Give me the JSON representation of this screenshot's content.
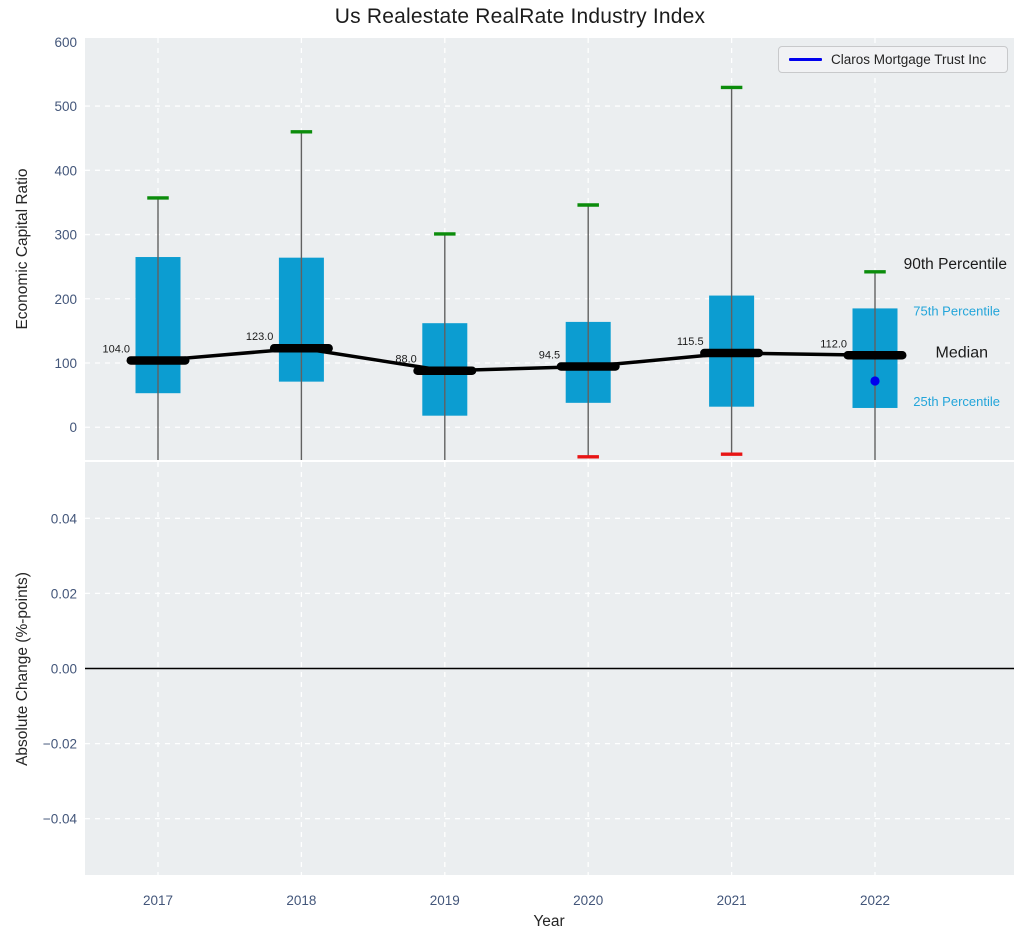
{
  "title": "Us Realestate RealRate Industry Index",
  "legend": {
    "label": "Claros Mortgage Trust Inc"
  },
  "colors": {
    "box_fill": "#0c9dd1",
    "median_line": "#000000",
    "whisker": "#616161",
    "percentile90_cap": "#0b8c0b",
    "percentile10_cap": "#e81414",
    "company_marker": "#0000ee",
    "annotation_blue": "#23a5da",
    "annotation_black": "#1a1a1a",
    "tick_label": "#43567a",
    "axis_label": "#262626",
    "plot_background": "#ebeef0",
    "gridline": "#ffffff",
    "zero_line": "#000000",
    "legend_background": "#f1f2f4",
    "legend_border": "#c8c9cb"
  },
  "chart_data": [
    {
      "type": "box",
      "panel": "top",
      "title": "Us Realestate RealRate Industry Index",
      "ylabel": "Economic Capital Ratio",
      "ylim": [
        -51,
        606
      ],
      "yticks": [
        {
          "value": 600,
          "label": "600"
        },
        {
          "value": 500,
          "label": "500"
        },
        {
          "value": 400,
          "label": "400"
        },
        {
          "value": 300,
          "label": "300"
        },
        {
          "value": 200,
          "label": "200"
        },
        {
          "value": 100,
          "label": "100"
        },
        {
          "value": 0,
          "label": "0"
        }
      ],
      "grid_yticks": [
        0,
        100,
        200,
        300,
        400,
        500
      ],
      "grid": true,
      "categories": [
        "2017",
        "2018",
        "2019",
        "2020",
        "2021",
        "2022"
      ],
      "series": [
        {
          "year": "2017",
          "p90": 357,
          "q75": 265,
          "median": 104.0,
          "q25": 53,
          "p10": null,
          "median_label": "104.0"
        },
        {
          "year": "2018",
          "p90": 460,
          "q75": 264,
          "median": 123.0,
          "q25": 71,
          "p10": null,
          "median_label": "123.0"
        },
        {
          "year": "2019",
          "p90": 301,
          "q75": 162,
          "median": 88.0,
          "q25": 18,
          "p10": null,
          "median_label": "88.0"
        },
        {
          "year": "2020",
          "p90": 346,
          "q75": 164,
          "median": 94.5,
          "q25": 38,
          "p10": -46,
          "median_label": "94.5"
        },
        {
          "year": "2021",
          "p90": 529,
          "q75": 205,
          "median": 115.5,
          "q25": 32,
          "p10": -42,
          "median_label": "115.5"
        },
        {
          "year": "2022",
          "p90": 242,
          "q75": 185,
          "median": 112.0,
          "q25": 30,
          "p10": null,
          "median_label": "112.0"
        }
      ],
      "company_series": {
        "name": "Claros Mortgage Trust Inc",
        "points": [
          {
            "year": "2022",
            "value": 72
          }
        ]
      },
      "annotations": [
        {
          "text": "90th Percentile",
          "value": 254,
          "color": "black",
          "size": 15.5,
          "x_end": 1007
        },
        {
          "text": "75th Percentile",
          "value": 182,
          "color": "blue",
          "size": 13,
          "x_end": 1000
        },
        {
          "text": "Median",
          "value": 116,
          "color": "black",
          "size": 16,
          "x_end": 988
        },
        {
          "text": "25th Percentile",
          "value": 41,
          "color": "blue",
          "size": 13,
          "x_end": 1000
        }
      ],
      "legend_position": "upper right"
    },
    {
      "type": "line",
      "panel": "bottom",
      "ylabel": "Absolute Change (%-points)",
      "xlabel": "Year",
      "ylim": [
        -0.055,
        0.055
      ],
      "yticks": [
        {
          "value": 0.04,
          "label": "0.04"
        },
        {
          "value": 0.02,
          "label": "0.02"
        },
        {
          "value": 0.0,
          "label": "0.00"
        },
        {
          "value": -0.02,
          "label": "−0.02"
        },
        {
          "value": -0.04,
          "label": "−0.04"
        }
      ],
      "grid_yticks": [
        0.04,
        0.02,
        -0.02,
        -0.04
      ],
      "grid": true,
      "categories": [
        "2017",
        "2018",
        "2019",
        "2020",
        "2021",
        "2022"
      ],
      "zero_line": 0.0,
      "series": []
    }
  ]
}
